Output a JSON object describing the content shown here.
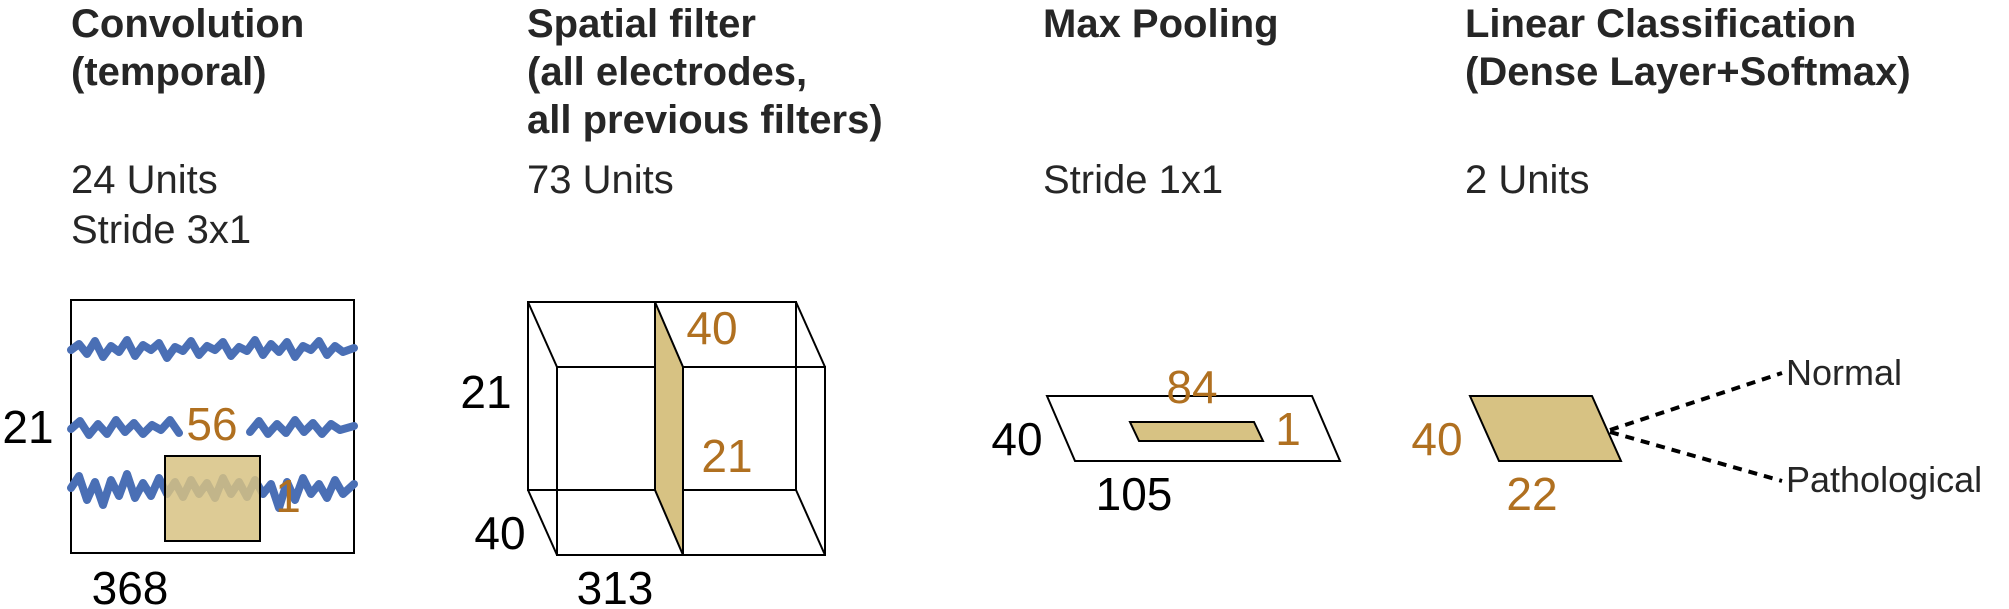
{
  "colors": {
    "accent": "#b07020",
    "fill": "#d7c283",
    "signal": "#4a6fb5",
    "text": "#262626",
    "line": "#000000"
  },
  "columns": [
    {
      "title_lines": [
        "Convolution",
        "(temporal)"
      ],
      "info_lines": [
        "24 Units",
        "Stride 3x1"
      ]
    },
    {
      "title_lines": [
        "Spatial filter",
        "(all electrodes,",
        "all previous filters)"
      ],
      "info_lines": [
        "73 Units"
      ]
    },
    {
      "title_lines": [
        "Max Pooling"
      ],
      "info_lines": [
        "Stride 1x1"
      ]
    },
    {
      "title_lines": [
        "Linear Classification",
        "(Dense Layer+Softmax)"
      ],
      "info_lines": [
        "2 Units"
      ]
    }
  ],
  "diagram": {
    "conv": {
      "height": "21",
      "width": "368",
      "kernel_w": "56",
      "kernel_h": "1"
    },
    "spatial": {
      "height": "21",
      "depth": "40",
      "width": "313",
      "filter_top": "40",
      "filter_side": "21"
    },
    "pool": {
      "top": "84",
      "right": "1",
      "left": "40",
      "bottom": "105"
    },
    "classify": {
      "left": "40",
      "bottom": "22"
    },
    "classes": [
      "Normal",
      "Pathological"
    ]
  }
}
